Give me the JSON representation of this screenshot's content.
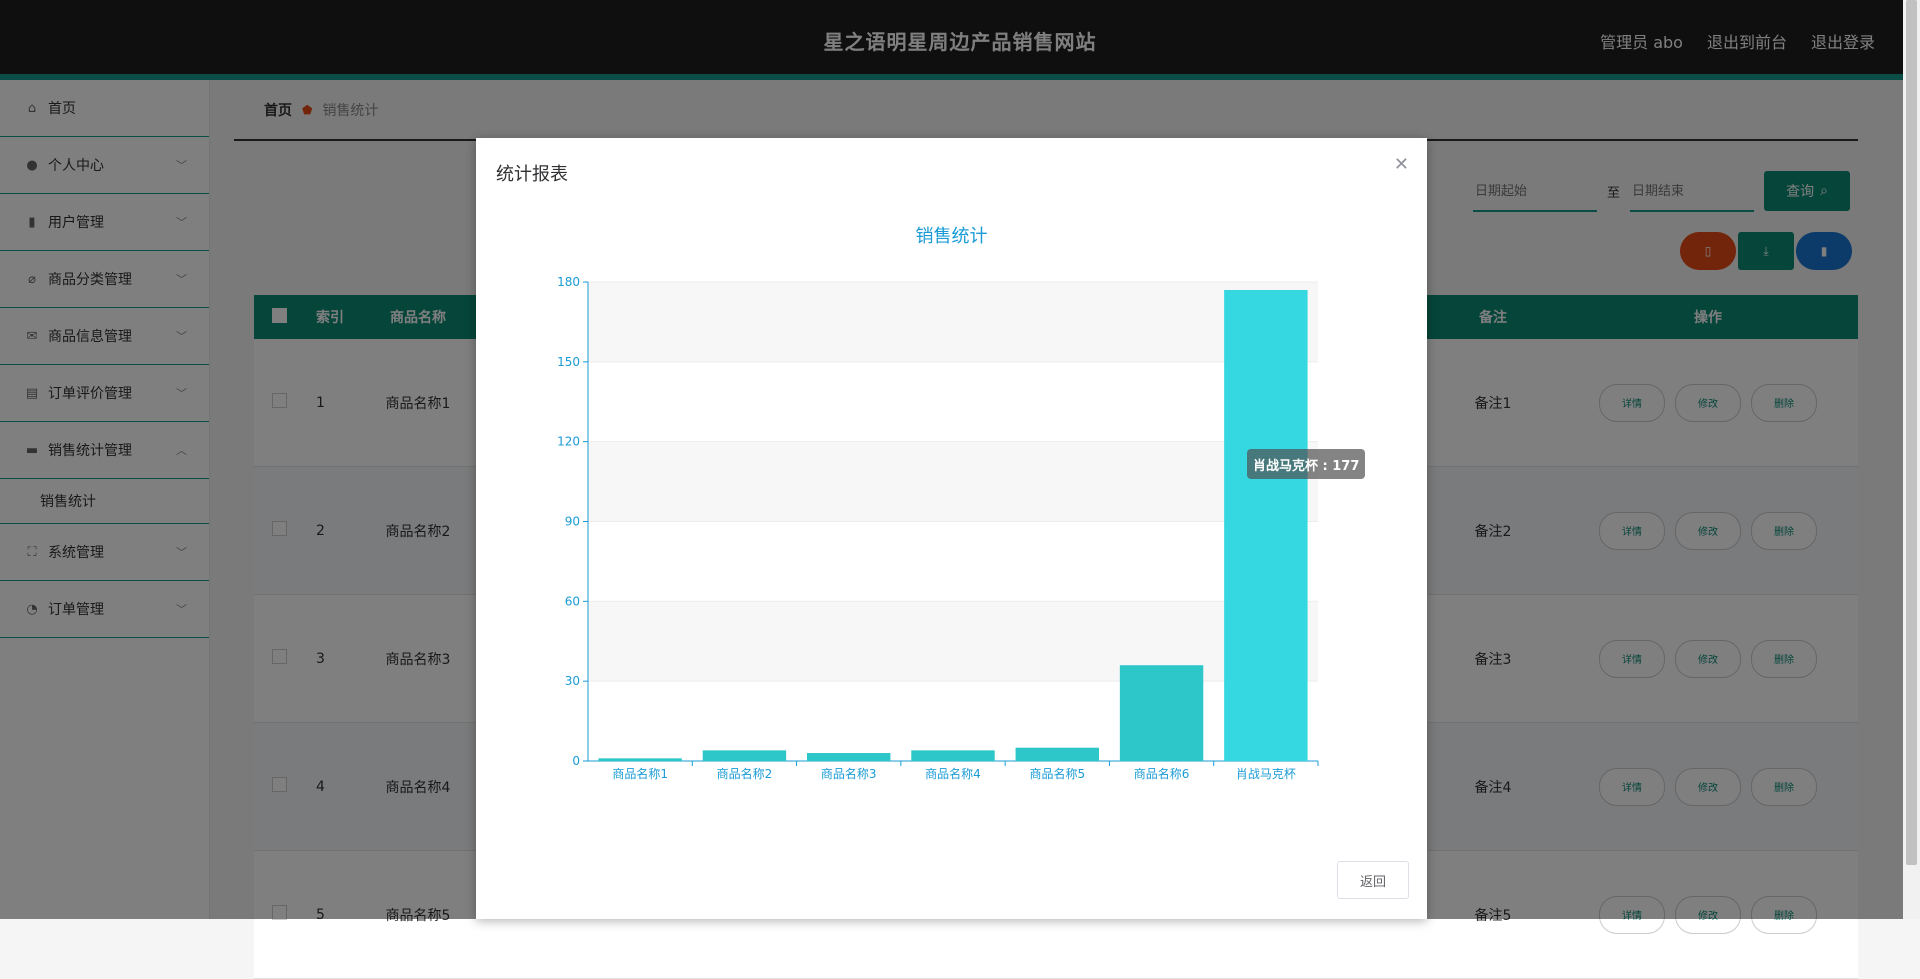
{
  "header": {
    "site_title": "星之语明星周边产品销售网站",
    "user": "管理员 abo",
    "to_front": "退出到前台",
    "logout": "退出登录"
  },
  "sidebar": {
    "items": [
      {
        "label": "首页",
        "icon": "home-icon"
      },
      {
        "label": "个人中心",
        "icon": "user-icon"
      },
      {
        "label": "用户管理",
        "icon": "bar-chart-icon"
      },
      {
        "label": "商品分类管理",
        "icon": "tag-icon"
      },
      {
        "label": "商品信息管理",
        "icon": "mail-icon"
      },
      {
        "label": "订单评价管理",
        "icon": "briefcase-icon"
      },
      {
        "label": "销售统计管理",
        "icon": "message-icon"
      },
      {
        "label": "系统管理",
        "icon": "fullscreen-icon"
      },
      {
        "label": "订单管理",
        "icon": "gauge-icon"
      }
    ],
    "sub_item": "销售统计"
  },
  "breadcrumb": {
    "home": "首页",
    "current": "销售统计"
  },
  "search": {
    "start_placeholder": "日期起始",
    "to": "至",
    "end_placeholder": "日期结束",
    "query": "查询"
  },
  "table": {
    "headers": {
      "index": "索引",
      "name": "商品名称",
      "note": "备注",
      "ops": "操作"
    },
    "rows": [
      {
        "index": "1",
        "name": "商品名称1",
        "note": "备注1"
      },
      {
        "index": "2",
        "name": "商品名称2",
        "note": "备注2"
      },
      {
        "index": "3",
        "name": "商品名称3",
        "note": "备注3"
      },
      {
        "index": "4",
        "name": "商品名称4",
        "note": "备注4"
      },
      {
        "index": "5",
        "name": "商品名称5",
        "note": "备注5"
      }
    ],
    "ops": {
      "detail": "详情",
      "edit": "修改",
      "delete": "删除"
    }
  },
  "dialog": {
    "title": "统计报表",
    "back": "返回",
    "tooltip": "肖战马克杯 : 177"
  },
  "colors": {
    "header_bg": "#1e1e1e",
    "accent": "#159a8c",
    "primary": "#0b8a74",
    "chart_title": "#1a9bd6",
    "bar": "#2ec7c9",
    "bar_highlight": "#35d8e0",
    "axis": "#1a9bd6",
    "delete_btn": "#e64a19",
    "chart_btn": "#1976d2"
  },
  "chart_data": {
    "type": "bar",
    "title": "销售统计",
    "categories": [
      "商品名称1",
      "商品名称2",
      "商品名称3",
      "商品名称4",
      "商品名称5",
      "商品名称6",
      "肖战马克杯"
    ],
    "values": [
      1,
      4,
      3,
      4,
      5,
      36,
      177
    ],
    "ylim": [
      0,
      180
    ],
    "yticks": [
      0,
      30,
      60,
      90,
      120,
      150,
      180
    ],
    "grid": true
  }
}
